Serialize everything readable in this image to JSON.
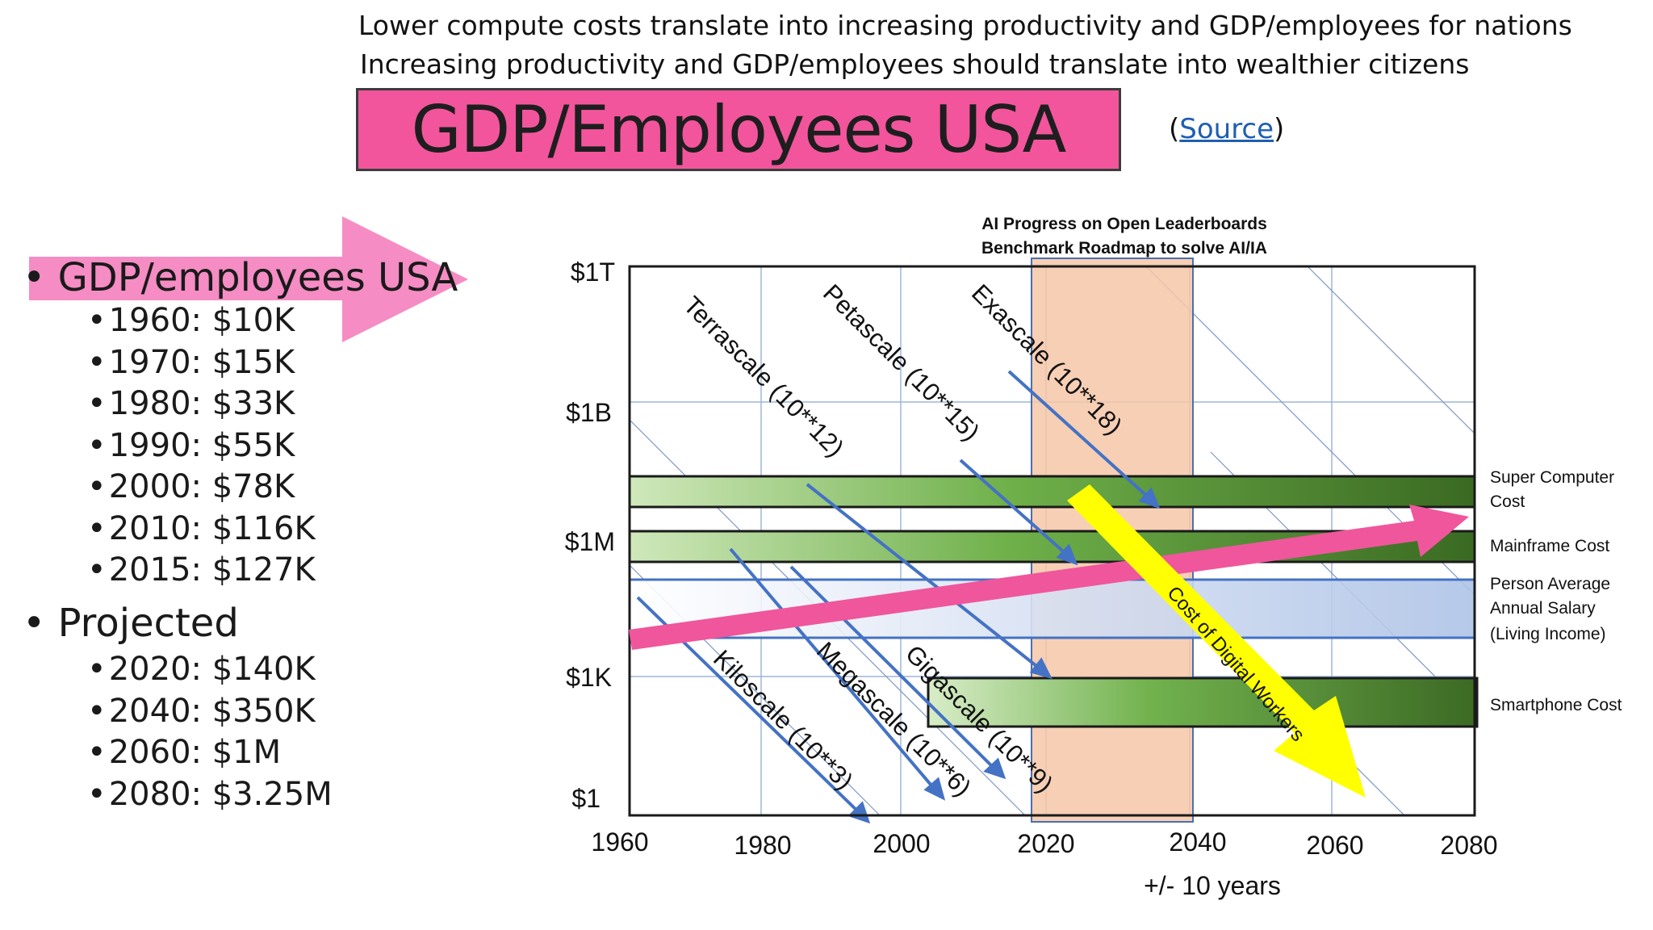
{
  "header": {
    "line1": "Lower compute costs translate into increasing productivity and GDP/employees for nations",
    "line2": "Increasing productivity and GDP/employees should translate into wealthier citizens",
    "title": "GDP/Employees USA",
    "source_open": "(",
    "source_label": "Source",
    "source_close": ")"
  },
  "bullets": {
    "main_label": "GDP/employees USA",
    "items": [
      "1960: $10K",
      "1970: $15K",
      "1980: $33K",
      "1990: $55K",
      "2000: $78K",
      "2010: $116K",
      "2015: $127K"
    ],
    "projected_label": "Projected",
    "projected_items": [
      "2020: $140K",
      "2040: $350K",
      "2060:  $1M",
      "2080: $3.25M"
    ]
  },
  "chart": {
    "title_line1": "AI Progress on Open Leaderboards",
    "title_line2": "Benchmark Roadmap to solve AI/IA",
    "y_ticks": [
      "$1T",
      "$1B",
      "$1M",
      "$1K",
      "$1"
    ],
    "x_ticks": [
      "1960",
      "1980",
      "2000",
      "2020",
      "2040",
      "2060",
      "2080"
    ],
    "x_note": "+/- 10 years",
    "scales": [
      "Terrascale (10**12)",
      "Petascale (10**15)",
      "Exascale (10**18)",
      "Kiloscale (10**3)",
      "Megascale (10**6)",
      "Gigascale (10**9)"
    ],
    "band_labels": {
      "super_computer": [
        "Super Computer",
        "Cost"
      ],
      "mainframe": [
        "Mainframe Cost"
      ],
      "salary": [
        "Person Average",
        "Annual Salary",
        "(Living Income)"
      ],
      "smartphone": [
        "Smartphone Cost"
      ]
    },
    "digital_workers_label": "Cost of Digital Workers",
    "colors": {
      "pink": "#f0569c",
      "yellow": "#ffff00",
      "blue_line": "#4472c4",
      "orange_band": "#f6c7a8",
      "green_dark": "#3e6b25",
      "green_light": "#c9e4b4",
      "salary_blue": "#b4c7e7"
    }
  }
}
